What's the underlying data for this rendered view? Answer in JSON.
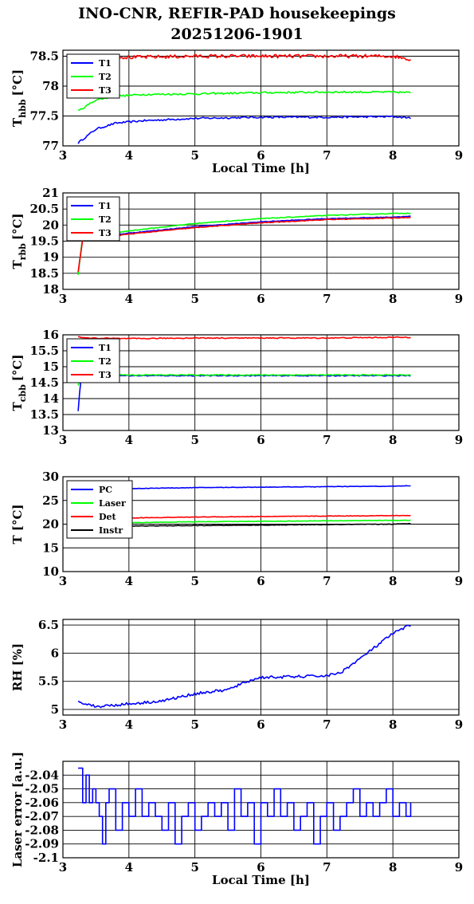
{
  "title": {
    "line1": "INO-CNR, REFIR-PAD housekeepings",
    "line2": "20251206-1901"
  },
  "chart_data": [
    {
      "id": "hbb",
      "type": "line",
      "ylabel_main": "T",
      "ylabel_sub": "hbb",
      "ylabel_unit": "[°C]",
      "xlabel": "Local Time [h]",
      "xlim": [
        3,
        9
      ],
      "ylim": [
        77,
        78.6
      ],
      "xticks": [
        "3",
        "4",
        "5",
        "6",
        "7",
        "8",
        "9"
      ],
      "yticks": [
        {
          "v": 77,
          "label": "77"
        },
        {
          "v": 77.5,
          "label": "77.5"
        },
        {
          "v": 78,
          "label": "78"
        },
        {
          "v": 78.5,
          "label": "78.5"
        }
      ],
      "grid": true,
      "legend": "top-left",
      "series": [
        {
          "name": "T1",
          "color": "#0000ff",
          "x": [
            3.23,
            3.5,
            3.8,
            4.2,
            5,
            6,
            7,
            8,
            8.27
          ],
          "y": [
            77.05,
            77.28,
            77.38,
            77.42,
            77.46,
            77.48,
            77.48,
            77.49,
            77.47
          ],
          "noise": 0.015
        },
        {
          "name": "T2",
          "color": "#00ff00",
          "x": [
            3.23,
            3.5,
            3.8,
            4.2,
            5,
            6,
            7,
            8,
            8.27
          ],
          "y": [
            77.58,
            77.77,
            77.83,
            77.86,
            77.87,
            77.89,
            77.9,
            77.9,
            77.89
          ],
          "noise": 0.015
        },
        {
          "name": "T3",
          "color": "#ff0000",
          "x": [
            3.23,
            3.5,
            4,
            5,
            6,
            7,
            8,
            8.27
          ],
          "y": [
            78.5,
            78.5,
            78.48,
            78.5,
            78.5,
            78.5,
            78.5,
            78.45
          ],
          "noise": 0.03
        }
      ]
    },
    {
      "id": "rbb",
      "type": "line",
      "ylabel_main": "T",
      "ylabel_sub": "rbb",
      "ylabel_unit": "[°C]",
      "xlabel": "",
      "xlim": [
        3,
        9
      ],
      "ylim": [
        18,
        21
      ],
      "xticks": [
        "3",
        "4",
        "5",
        "6",
        "7",
        "8",
        "9"
      ],
      "yticks": [
        {
          "v": 18,
          "label": "18"
        },
        {
          "v": 18.5,
          "label": "18.5"
        },
        {
          "v": 19,
          "label": "19"
        },
        {
          "v": 19.5,
          "label": "19.5"
        },
        {
          "v": 20,
          "label": "20"
        },
        {
          "v": 20.5,
          "label": "20.5"
        },
        {
          "v": 21,
          "label": "21"
        }
      ],
      "grid": true,
      "legend": "top-left",
      "series": [
        {
          "name": "T1",
          "color": "#0000ff",
          "x": [
            3.23,
            3.3,
            3.5,
            4,
            5,
            6,
            7,
            8,
            8.27
          ],
          "y": [
            18.5,
            19.6,
            19.62,
            19.75,
            19.95,
            20.1,
            20.2,
            20.25,
            20.27
          ],
          "noise": 0.01
        },
        {
          "name": "T2",
          "color": "#00ff00",
          "x": [
            3.23,
            3.3,
            3.5,
            4,
            5,
            6,
            7,
            8,
            8.27
          ],
          "y": [
            18.45,
            19.65,
            19.68,
            19.82,
            20.05,
            20.2,
            20.3,
            20.36,
            20.37
          ],
          "noise": 0.01
        },
        {
          "name": "T3",
          "color": "#ff0000",
          "x": [
            3.23,
            3.3,
            3.5,
            4,
            5,
            6,
            7,
            8,
            8.27
          ],
          "y": [
            18.55,
            19.55,
            19.6,
            19.72,
            19.92,
            20.07,
            20.17,
            20.22,
            20.24
          ],
          "noise": 0.01
        }
      ]
    },
    {
      "id": "cbb",
      "type": "line",
      "ylabel_main": "T",
      "ylabel_sub": "cbb",
      "ylabel_unit": "[°C]",
      "xlabel": "",
      "xlim": [
        3,
        9
      ],
      "ylim": [
        13,
        16
      ],
      "xticks": [
        "3",
        "4",
        "5",
        "6",
        "7",
        "8",
        "9"
      ],
      "yticks": [
        {
          "v": 13,
          "label": "13"
        },
        {
          "v": 13.5,
          "label": "13.5"
        },
        {
          "v": 14,
          "label": "14"
        },
        {
          "v": 14.5,
          "label": "14.5"
        },
        {
          "v": 15,
          "label": "15"
        },
        {
          "v": 15.5,
          "label": "15.5"
        },
        {
          "v": 16,
          "label": "16"
        }
      ],
      "grid": true,
      "legend": "top-left",
      "series": [
        {
          "name": "T1",
          "color": "#0000ff",
          "x": [
            3.23,
            3.27,
            3.3,
            4,
            5,
            6,
            7,
            8,
            8.27
          ],
          "y": [
            13.6,
            14.6,
            14.75,
            14.72,
            14.72,
            14.72,
            14.72,
            14.72,
            14.72
          ],
          "noise": 0.015
        },
        {
          "name": "T2",
          "color": "#00ff00",
          "x": [
            3.23,
            3.27,
            3.3,
            4,
            5,
            6,
            7,
            8,
            8.27
          ],
          "y": [
            14.4,
            14.7,
            14.77,
            14.74,
            14.74,
            14.74,
            14.74,
            14.74,
            14.74
          ],
          "noise": 0.015
        },
        {
          "name": "T3",
          "color": "#ff0000",
          "x": [
            3.23,
            3.3,
            4,
            5,
            6,
            7,
            8,
            8.27
          ],
          "y": [
            15.95,
            15.9,
            15.88,
            15.9,
            15.9,
            15.9,
            15.92,
            15.92
          ],
          "noise": 0.015
        }
      ]
    },
    {
      "id": "temps",
      "type": "line",
      "ylabel_main": "T [°C]",
      "ylabel_sub": "",
      "ylabel_unit": "",
      "xlabel": "",
      "xlim": [
        3,
        9
      ],
      "ylim": [
        10,
        30
      ],
      "xticks": [
        "3",
        "4",
        "5",
        "6",
        "7",
        "8",
        "9"
      ],
      "yticks": [
        {
          "v": 10,
          "label": "10"
        },
        {
          "v": 15,
          "label": "15"
        },
        {
          "v": 20,
          "label": "20"
        },
        {
          "v": 25,
          "label": "25"
        },
        {
          "v": 30,
          "label": "30"
        }
      ],
      "grid": true,
      "legend": "top-left",
      "series": [
        {
          "name": "PC",
          "color": "#0000ff",
          "x": [
            3.23,
            4,
            5,
            6,
            7,
            8,
            8.27
          ],
          "y": [
            27.2,
            27.5,
            27.7,
            27.8,
            27.9,
            28,
            28.1
          ],
          "noise": 0.05
        },
        {
          "name": "Laser",
          "color": "#00ff00",
          "x": [
            3.23,
            4,
            5,
            6,
            7,
            8,
            8.27
          ],
          "y": [
            19.8,
            20.3,
            20.5,
            20.6,
            20.7,
            20.8,
            20.8
          ],
          "noise": 0.05
        },
        {
          "name": "Det",
          "color": "#ff0000",
          "x": [
            3.23,
            4,
            5,
            6,
            7,
            8,
            8.27
          ],
          "y": [
            21,
            21.3,
            21.5,
            21.6,
            21.7,
            21.8,
            21.8
          ],
          "noise": 0.05
        },
        {
          "name": "Instr",
          "color": "#000000",
          "x": [
            3.23,
            4,
            5,
            6,
            7,
            8,
            8.27
          ],
          "y": [
            19.2,
            19.6,
            19.7,
            19.8,
            19.9,
            20,
            20.1
          ],
          "noise": 0.05
        }
      ]
    },
    {
      "id": "rh",
      "type": "line",
      "ylabel_main": "RH [%]",
      "ylabel_sub": "",
      "ylabel_unit": "",
      "xlabel": "",
      "xlim": [
        3,
        9
      ],
      "ylim": [
        4.9,
        6.6
      ],
      "xticks": [
        "3",
        "4",
        "5",
        "6",
        "7",
        "8",
        "9"
      ],
      "yticks": [
        {
          "v": 5,
          "label": "5"
        },
        {
          "v": 5.5,
          "label": "5.5"
        },
        {
          "v": 6,
          "label": "6"
        },
        {
          "v": 6.5,
          "label": "6.5"
        }
      ],
      "grid": true,
      "legend": "none",
      "series": [
        {
          "name": "",
          "color": "#0000ff",
          "x": [
            3.23,
            3.5,
            4,
            4.5,
            5,
            5.5,
            5.8,
            6,
            6.5,
            7,
            7.2,
            7.5,
            8,
            8.27
          ],
          "y": [
            5.15,
            5.05,
            5.1,
            5.15,
            5.28,
            5.35,
            5.5,
            5.57,
            5.58,
            5.6,
            5.65,
            5.9,
            6.35,
            6.5
          ],
          "noise": 0.025
        }
      ]
    },
    {
      "id": "laser",
      "type": "line",
      "ylabel_main": "Laser error [a.u.]",
      "ylabel_sub": "",
      "ylabel_unit": "",
      "xlabel": "Local Time [h]",
      "xlim": [
        3,
        9
      ],
      "ylim": [
        -2.1,
        -2.03
      ],
      "xticks": [
        "3",
        "4",
        "5",
        "6",
        "7",
        "8",
        "9"
      ],
      "yticks": [
        {
          "v": -2.04,
          "label": "-2.04"
        },
        {
          "v": -2.05,
          "label": "-2.05"
        },
        {
          "v": -2.06,
          "label": "-2.06"
        },
        {
          "v": -2.07,
          "label": "-2.07"
        },
        {
          "v": -2.08,
          "label": "-2.08"
        },
        {
          "v": -2.09,
          "label": "-2.09"
        },
        {
          "v": -2.1,
          "label": "-2.1"
        }
      ],
      "grid": true,
      "legend": "none",
      "series": [
        {
          "name": "",
          "color": "#0000ff",
          "x": [
            3.23,
            3.3,
            3.35,
            3.4,
            3.45,
            3.5,
            3.55,
            3.6,
            3.65,
            3.7,
            3.8,
            3.9,
            4,
            4.1,
            4.2,
            4.3,
            4.4,
            4.5,
            4.6,
            4.7,
            4.8,
            4.9,
            5,
            5.1,
            5.2,
            5.3,
            5.4,
            5.5,
            5.6,
            5.7,
            5.8,
            5.9,
            6,
            6.1,
            6.2,
            6.3,
            6.4,
            6.5,
            6.6,
            6.7,
            6.8,
            6.9,
            7,
            7.1,
            7.2,
            7.3,
            7.4,
            7.5,
            7.6,
            7.7,
            7.8,
            7.9,
            8,
            8.1,
            8.2,
            8.27
          ],
          "y": [
            -2.035,
            -2.06,
            -2.04,
            -2.06,
            -2.05,
            -2.06,
            -2.07,
            -2.09,
            -2.06,
            -2.05,
            -2.08,
            -2.06,
            -2.07,
            -2.05,
            -2.07,
            -2.06,
            -2.07,
            -2.08,
            -2.06,
            -2.09,
            -2.07,
            -2.06,
            -2.08,
            -2.07,
            -2.06,
            -2.07,
            -2.06,
            -2.08,
            -2.05,
            -2.07,
            -2.06,
            -2.09,
            -2.06,
            -2.07,
            -2.05,
            -2.07,
            -2.06,
            -2.08,
            -2.07,
            -2.06,
            -2.09,
            -2.07,
            -2.06,
            -2.08,
            -2.07,
            -2.06,
            -2.05,
            -2.07,
            -2.06,
            -2.07,
            -2.06,
            -2.05,
            -2.07,
            -2.06,
            -2.07,
            -2.06
          ],
          "noise": 0
        }
      ]
    }
  ]
}
